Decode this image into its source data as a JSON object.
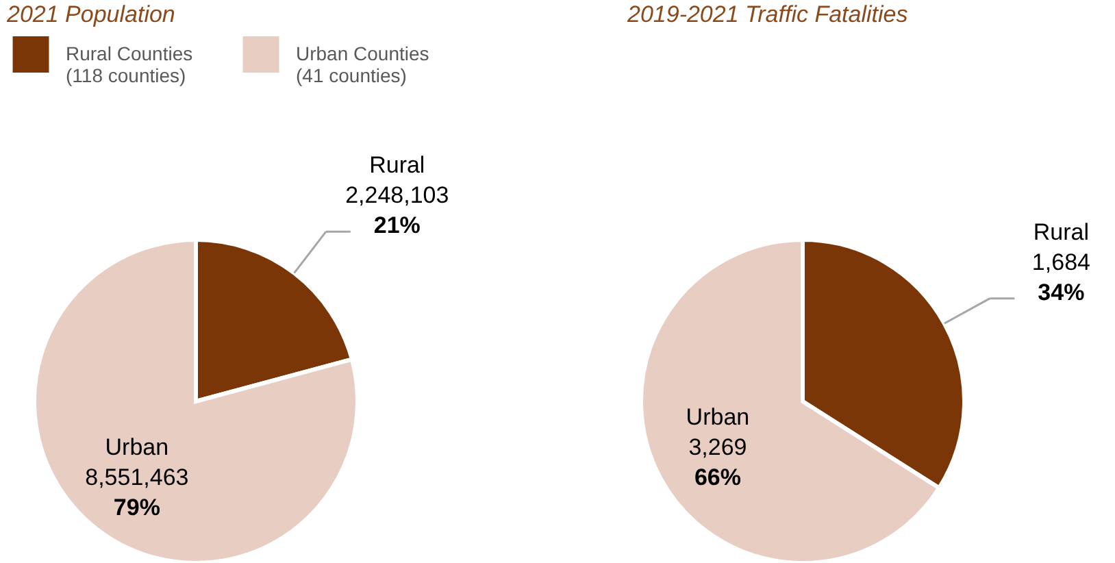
{
  "chart_data": [
    {
      "type": "pie",
      "title": "2021 Population",
      "categories": [
        "Rural",
        "Urban"
      ],
      "values": [
        2248103,
        8551463
      ],
      "colors": [
        "#7b3608",
        "#e8cdc3"
      ],
      "value_labels": [
        "2,248,103",
        "8,551,463"
      ],
      "annotations": [
        "Rural Counties",
        "(118 counties)",
        "Urban Counties",
        "(41 counties)",
        {
          "text": "21%",
          "x": "Rural"
        },
        {
          "text": "79%",
          "x": "Urban"
        }
      ]
    },
    {
      "type": "pie",
      "title": "2019-2021 Traffic Fatalities",
      "categories": [
        "Rural",
        "Urban"
      ],
      "values": [
        1684,
        3269
      ],
      "colors": [
        "#7b3608",
        "#e8cdc3"
      ],
      "value_labels": [
        "1,684",
        "3,269"
      ],
      "annotations": [
        {
          "text": "34%",
          "x": "Rural"
        },
        {
          "text": "66%",
          "x": "Urban"
        }
      ]
    }
  ]
}
